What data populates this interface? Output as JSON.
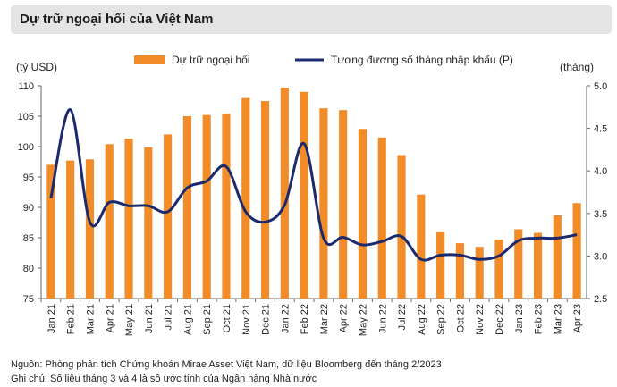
{
  "title": "Dự trữ ngoại hối của Việt Nam",
  "chart_data": {
    "type": "bar+line",
    "title": "Dự trữ ngoại hối của Việt Nam",
    "categories": [
      "Jan 21",
      "Feb 21",
      "Mar 21",
      "Apr 21",
      "May 21",
      "Jun 21",
      "Jul 21",
      "Aug 21",
      "Sep 21",
      "Oct 21",
      "Nov 21",
      "Dec 21",
      "Jan 22",
      "Feb 22",
      "Mar 22",
      "Apr 22",
      "May 22",
      "Jun 22",
      "Jul 22",
      "Aug 22",
      "Sep 22",
      "Oct 22",
      "Nov 22",
      "Dec 22",
      "Jan 23",
      "Feb 23",
      "Mar 23",
      "Apr 23"
    ],
    "bar_series": {
      "name": "Dự trữ ngoại hối",
      "color": "#f28c28",
      "axis": "left",
      "values": [
        97.0,
        97.7,
        97.9,
        100.4,
        101.3,
        99.9,
        102.0,
        105.0,
        105.2,
        105.4,
        108.0,
        107.5,
        109.7,
        109.0,
        106.3,
        106.0,
        102.9,
        101.5,
        98.6,
        92.1,
        85.9,
        84.1,
        83.5,
        84.7,
        86.4,
        85.8,
        88.7,
        90.7
      ]
    },
    "line_series": {
      "name": "Tương đương số tháng nhập khẩu (P)",
      "color": "#1a2a6c",
      "axis": "right",
      "values": [
        3.68,
        4.72,
        3.4,
        3.63,
        3.59,
        3.59,
        3.52,
        3.8,
        3.88,
        4.05,
        3.52,
        3.4,
        3.6,
        4.32,
        3.21,
        3.22,
        3.13,
        3.17,
        3.23,
        2.96,
        3.01,
        3.01,
        2.96,
        3.0,
        3.18,
        3.21,
        3.21,
        3.25
      ]
    },
    "ylabel_left": "(tỷ USD)",
    "ylabel_right": "(tháng)",
    "ylim_left": [
      75,
      110
    ],
    "yticks_left": [
      "75",
      "80",
      "85",
      "90",
      "95",
      "100",
      "105",
      "110"
    ],
    "ylim_right": [
      2.5,
      5.0
    ],
    "yticks_right": [
      "2.5",
      "3.0",
      "3.5",
      "4.0",
      "4.5",
      "5.0"
    ],
    "grid": false,
    "legend_position": "top"
  },
  "footnotes": {
    "source": "Nguồn: Phòng phân tích Chứng khoán Mirae Asset Việt Nam, dữ liệu Bloomberg đến tháng 2/2023",
    "note": "Ghi chú: Số liệu tháng 3 và 4 là số ước tính của Ngân hàng Nhà nước"
  }
}
